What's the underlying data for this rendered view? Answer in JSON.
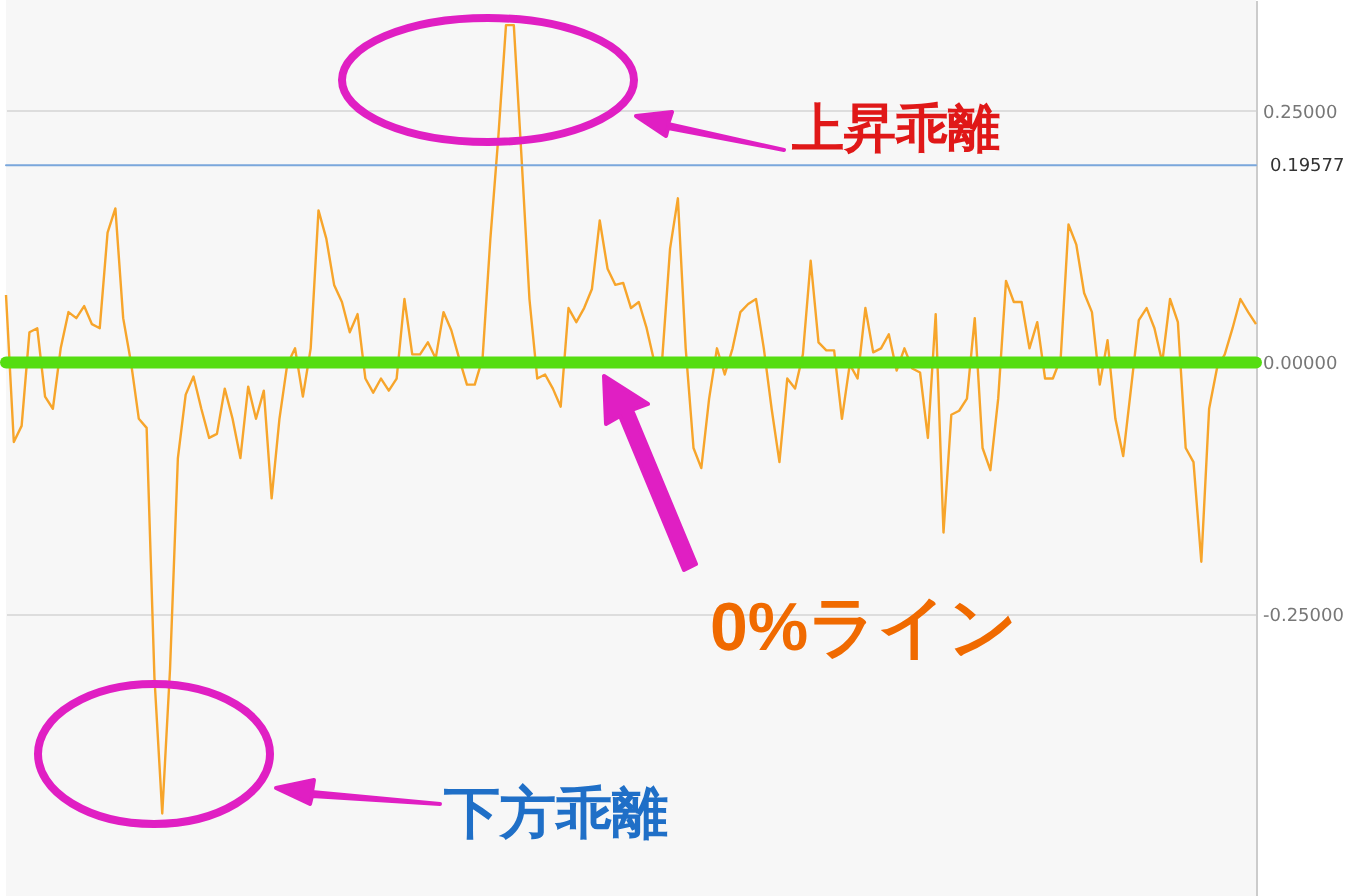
{
  "chart_data": {
    "type": "line",
    "categories": [
      null,
      null,
      null,
      null,
      null,
      null,
      null,
      null,
      null,
      null,
      null,
      null,
      null,
      null,
      null,
      null,
      null,
      null,
      null,
      null,
      null,
      null,
      null,
      null,
      null,
      null,
      null,
      null,
      null,
      null,
      null,
      null,
      null,
      null,
      null,
      null,
      null,
      null,
      null,
      null,
      null,
      null,
      null,
      null,
      null,
      null,
      null,
      null,
      null,
      null,
      null,
      null,
      null,
      null,
      null,
      null,
      null,
      null,
      null,
      null,
      null,
      null,
      null,
      null,
      null,
      null,
      null,
      null,
      null,
      null,
      null,
      null,
      null,
      null,
      null,
      null,
      null,
      null,
      null,
      null,
      null,
      null,
      null,
      null,
      null,
      null,
      null,
      null,
      null,
      null,
      null,
      null,
      null,
      null,
      null,
      null,
      null,
      null,
      null,
      null,
      null,
      null,
      null,
      null,
      null,
      null,
      null,
      null,
      null,
      null,
      null,
      null,
      null,
      null,
      null,
      null,
      null,
      null,
      null,
      null,
      null,
      null,
      null,
      null,
      null,
      null,
      null,
      null,
      null,
      null,
      null,
      null,
      null,
      null,
      null,
      null,
      null,
      null,
      null,
      null,
      null,
      null,
      null,
      null,
      null,
      null,
      null,
      null,
      null,
      null,
      null,
      null,
      null,
      null,
      null,
      null,
      null,
      null,
      null,
      null,
      null
    ],
    "series": [
      {
        "color": "#f7a52b",
        "values": [
          0.067,
          -0.079,
          -0.063,
          0.03,
          0.034,
          -0.034,
          -0.046,
          0.014,
          0.05,
          0.044,
          0.056,
          0.038,
          0.034,
          0.129,
          0.153,
          0.044,
          0,
          -0.056,
          -0.065,
          -0.313,
          -0.448,
          -0.304,
          -0.095,
          -0.032,
          -0.014,
          -0.046,
          -0.075,
          -0.071,
          -0.026,
          -0.056,
          -0.095,
          -0.024,
          -0.056,
          -0.028,
          -0.135,
          -0.056,
          -0.002,
          0.014,
          -0.034,
          0.014,
          0.151,
          0.123,
          0.077,
          0.06,
          0.03,
          0.048,
          -0.016,
          -0.03,
          -0.016,
          -0.028,
          -0.016,
          0.063,
          0.008,
          0.008,
          0.02,
          0.004,
          0.05,
          0.032,
          0.004,
          -0.022,
          -0.022,
          0.004,
          0.123,
          0.222,
          0.335,
          0.335,
          0.202,
          0.063,
          -0.016,
          -0.012,
          -0.026,
          -0.044,
          0.054,
          0.04,
          0.054,
          0.073,
          0.141,
          0.093,
          0.077,
          0.079,
          0.054,
          0.06,
          0.034,
          0,
          0.004,
          0.113,
          0.163,
          0.014,
          -0.085,
          -0.105,
          -0.036,
          0.014,
          -0.012,
          0.014,
          0.05,
          0.058,
          0.063,
          0.014,
          -0.046,
          -0.099,
          -0.016,
          -0.026,
          0.008,
          0.101,
          0.02,
          0.012,
          0.012,
          -0.056,
          -0.002,
          -0.016,
          0.054,
          0.01,
          0.014,
          0.028,
          -0.008,
          0.014,
          -0.006,
          -0.01,
          -0.075,
          0.048,
          -0.169,
          -0.052,
          -0.048,
          -0.036,
          0.044,
          -0.085,
          -0.107,
          -0.036,
          0.081,
          0.06,
          0.06,
          0.014,
          0.04,
          -0.016,
          -0.016,
          0.004,
          0.137,
          0.117,
          0.069,
          0.05,
          -0.022,
          0.022,
          -0.056,
          -0.093,
          -0.026,
          0.042,
          0.054,
          0.034,
          0,
          0.063,
          0.04,
          -0.085,
          -0.099,
          -0.198,
          -0.046,
          -0.006,
          0.008,
          0.034,
          0.063,
          0.05,
          0.038
        ]
      }
    ],
    "ylim": [
      -0.53,
      0.36
    ],
    "yticks": [
      {
        "value": 0.25,
        "label": "0.25000"
      },
      {
        "value": 0,
        "label": "0.00000"
      },
      {
        "value": -0.25,
        "label": "-0.25000"
      }
    ],
    "ref_lines": [
      {
        "axis": "y",
        "value": 0.19577,
        "label": "0.19577",
        "color": "#7aa7dc"
      },
      {
        "axis": "y",
        "value": 0,
        "color": "#55dd11"
      }
    ],
    "annotations": [
      "上昇乖離",
      "0%ライン",
      "下方乖離"
    ],
    "grid": "y",
    "tick_labels": "y"
  }
}
